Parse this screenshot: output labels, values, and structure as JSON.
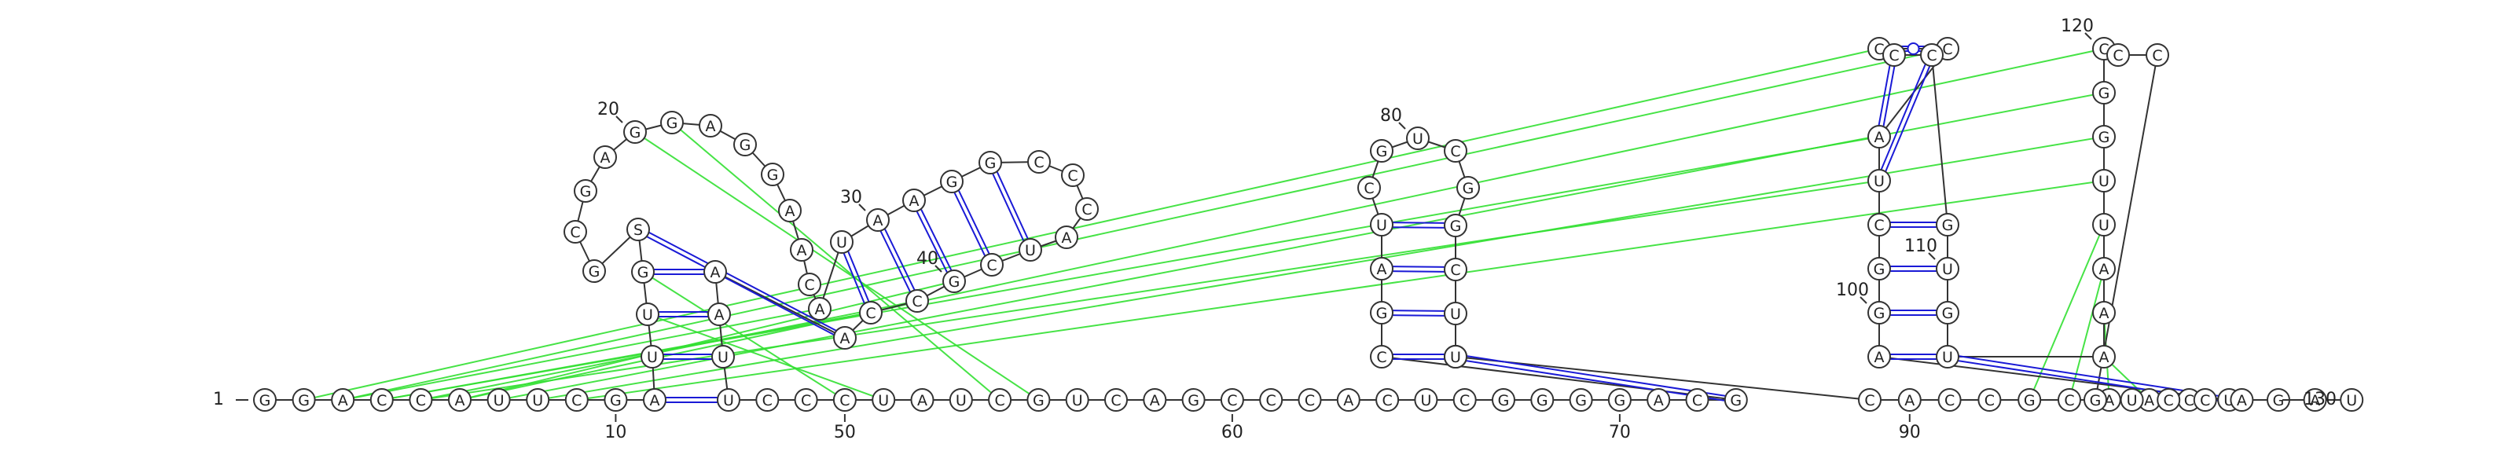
{
  "sequence": "GGACCAUUCGAUUGSGCGAGGAGGAACAUAAGGCCCAUCGCCAAAUUCCCUAUCGUCAGCCCACUCGGGGACGCGAUCGUCGGCUGGUCACCGCAACUAGGCUACCCCGUGUAAAUUGGCCCGUCCAGAU",
  "start_label": "1",
  "end_label": "130",
  "ticks": [
    {
      "text": "10",
      "n": 10
    },
    {
      "text": "20",
      "n": 20
    },
    {
      "text": "30",
      "n": 30
    },
    {
      "text": "40",
      "n": 40
    },
    {
      "text": "50",
      "n": 50
    },
    {
      "text": "60",
      "n": 60
    },
    {
      "text": "70",
      "n": 70
    },
    {
      "text": "80",
      "n": 80
    },
    {
      "text": "90",
      "n": 90
    },
    {
      "text": "100",
      "n": 100
    },
    {
      "text": "110",
      "n": 110
    },
    {
      "text": "120",
      "n": 120
    }
  ],
  "colors": {
    "backbone": "#333333",
    "canonical_pair": "#1a1ad6",
    "tertiary_pair": "#33e033",
    "gu_dot": "#22cc22",
    "nucleotide_fill": "#ffffff",
    "nucleotide_stroke": "#333333"
  }
}
